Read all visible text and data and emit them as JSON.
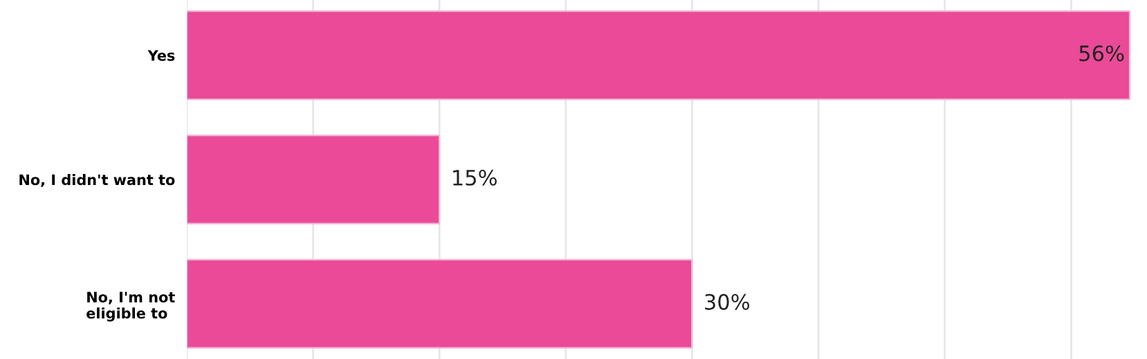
{
  "chart_data": {
    "type": "bar",
    "orientation": "horizontal",
    "categories": [
      "Yes",
      "No, I didn't want to",
      "No, I'm not\neligible to"
    ],
    "values": [
      56,
      15,
      30
    ],
    "value_labels": [
      "56%",
      "15%",
      "30%"
    ],
    "color": "#ea4a98",
    "grid": "x"
  }
}
